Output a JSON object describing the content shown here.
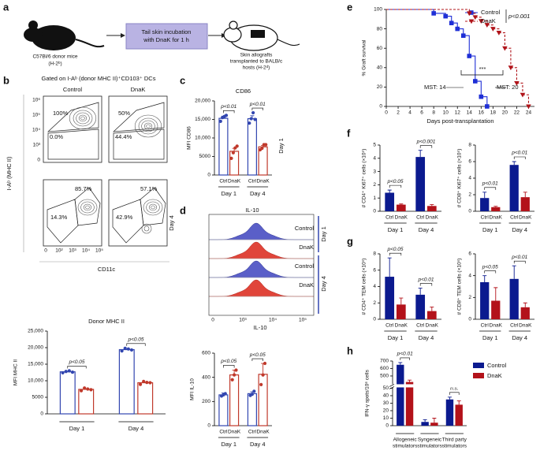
{
  "panel_letters": [
    "a",
    "b",
    "c",
    "d",
    "e",
    "f",
    "g",
    "h"
  ],
  "diagram": {
    "donor": [
      "C57Bl/6 donor mice",
      "(H-2ᵇ)"
    ],
    "step": [
      "Tail skin incubation",
      "with DnaK for 1 h"
    ],
    "host": [
      "Skin allografts",
      "transplanted to BALB/c",
      "hosts (H-2ᵈ)"
    ]
  },
  "flow": {
    "title": "Gated on I-Aᵇ (donor MHC II)⁺CD103⁺ DCs",
    "columns": [
      "Control",
      "DnaK"
    ],
    "rows": [
      "Day 1",
      "Day 4"
    ],
    "ylabel": "I-Aᵇ (MHC II)",
    "xlabel": "CD11c",
    "yticks": [
      "10⁶",
      "10⁵",
      "10⁴",
      "10³",
      "0"
    ],
    "xticks": [
      "0",
      "10²",
      "10³",
      "10⁴",
      "10⁵"
    ],
    "plots": [
      {
        "upper": "100%",
        "lower": "0.0%"
      },
      {
        "upper": "50%",
        "lower": "44.4%"
      },
      {
        "upper": "85.7%",
        "lower": "14.3%"
      },
      {
        "upper": "57.1%",
        "lower": "42.9%"
      }
    ]
  },
  "histogram": {
    "title": "IL-10",
    "rows": [
      "Control",
      "DnaK",
      "Control",
      "DnaK"
    ],
    "days": [
      "Day 1",
      "Day 4"
    ],
    "xticks": [
      "0",
      "10³",
      "10⁴",
      "10⁵"
    ],
    "xlabel": "IL-10"
  },
  "chart_data": [
    {
      "type": "bar",
      "style": "open",
      "title": "Donor MHC II",
      "ylabel": "MFI MHC II",
      "categories": [
        "Day 1",
        "Day 4"
      ],
      "series": [
        {
          "name": "Ctrl",
          "color": "#3246b0",
          "values": [
            12700,
            19400
          ],
          "points": [
            [
              12400,
              12800,
              13000,
              12600
            ],
            [
              19000,
              19800,
              19600,
              19300
            ]
          ]
        },
        {
          "name": "DnaK",
          "color": "#c0392b",
          "values": [
            7400,
            9400
          ],
          "points": [
            [
              7000,
              7800,
              7500,
              7300
            ],
            [
              8900,
              9800,
              9500,
              9400
            ]
          ]
        }
      ],
      "ylim": [
        0,
        25000
      ],
      "yticks": [
        0,
        5000,
        {
          "value": 10000,
          "label": "10,000"
        },
        {
          "value": 15000,
          "label": "15,000"
        },
        {
          "value": 20000,
          "label": "20,000"
        },
        {
          "value": 25000,
          "label": "25,000"
        }
      ],
      "annotations": [
        "p<0.05",
        "p<0.05"
      ]
    },
    {
      "type": "bar",
      "style": "open",
      "title": "CD86",
      "ylabel": "MFI CD86",
      "categories": [
        "Day 1",
        "Day 4"
      ],
      "series": [
        {
          "name": "Ctrl",
          "color": "#3246b0",
          "values": [
            15300,
            15200
          ],
          "errors": [
            600,
            800
          ],
          "points": [
            [
              14500,
              15500,
              15800,
              16100
            ],
            [
              14000,
              15200,
              16800,
              15000
            ]
          ]
        },
        {
          "name": "DnaK",
          "color": "#c0392b",
          "values": [
            6400,
            7600
          ],
          "errors": [
            800,
            400
          ],
          "points": [
            [
              4500,
              6000,
              7300,
              7800
            ],
            [
              6800,
              7200,
              8200,
              8200
            ]
          ]
        }
      ],
      "ylim": [
        0,
        20000
      ],
      "yticks": [
        0,
        5000,
        {
          "value": 10000,
          "label": "10,000"
        },
        {
          "value": 15000,
          "label": "15,000"
        },
        {
          "value": 20000,
          "label": "20,000"
        }
      ],
      "annotations": [
        "p<0.01",
        "p<0.01"
      ]
    },
    {
      "type": "bar",
      "style": "open",
      "ylabel": "MFI IL-10",
      "categories": [
        "Day 1",
        "Day 4"
      ],
      "series": [
        {
          "name": "Ctrl",
          "color": "#3246b0",
          "values": [
            255,
            265
          ],
          "errors": [
            15,
            15
          ],
          "points": [
            [
              245,
              255,
              265
            ],
            [
              250,
              260,
              285
            ]
          ]
        },
        {
          "name": "DnaK",
          "color": "#c0392b",
          "values": [
            420,
            425
          ],
          "errors": [
            40,
            90
          ],
          "points": [
            [
              380,
              420,
              460
            ],
            [
              340,
              420,
              515
            ]
          ]
        }
      ],
      "ylim": [
        0,
        600
      ],
      "yticks": [
        0,
        200,
        400,
        600
      ],
      "annotations": [
        "p<0.05",
        "p<0.05"
      ]
    },
    {
      "type": "survival",
      "xlabel": "Days post-transplantation",
      "ylabel": "% Graft survival",
      "xlim": [
        0,
        25
      ],
      "xticks": [
        0,
        2,
        4,
        6,
        8,
        10,
        12,
        14,
        16,
        18,
        20,
        22,
        24
      ],
      "ylim": [
        0,
        100
      ],
      "yticks": [
        0,
        20,
        40,
        60,
        80,
        100
      ],
      "series": [
        {
          "name": "Control",
          "color": "#1f2fd6",
          "marker": "square",
          "linestyle": "solid",
          "x": [
            8,
            10,
            11,
            12,
            13,
            14,
            15,
            16,
            17
          ],
          "values": [
            96,
            93,
            86,
            80,
            73,
            52,
            26,
            10,
            0
          ]
        },
        {
          "name": "DnaK",
          "color": "#b0141a",
          "marker": "triangle",
          "linestyle": "dashed",
          "x": [
            14,
            15,
            16,
            17,
            18,
            19,
            20,
            21,
            22,
            23,
            24
          ],
          "values": [
            96,
            92,
            88,
            84,
            80,
            76,
            60,
            40,
            24,
            12,
            0
          ]
        }
      ],
      "legend": "upper right",
      "p_value": "p<0.001",
      "significance": "***",
      "mst": [
        "MST: 14",
        "MST: 20"
      ]
    },
    {
      "type": "bar",
      "style": "filled",
      "ylabel": "# CD4⁺ Ki67⁺ cells (×10⁵)",
      "categories": [
        "Day 1",
        "Day 4"
      ],
      "series": [
        {
          "name": "Ctrl",
          "color": "#0b1a8f",
          "values": [
            1.4,
            4.1
          ],
          "errors": [
            0.2,
            0.5
          ]
        },
        {
          "name": "DnaK",
          "color": "#b3121a",
          "values": [
            0.5,
            0.4
          ],
          "errors": [
            0.05,
            0.1
          ]
        }
      ],
      "ylim": [
        0,
        5
      ],
      "yticks": [
        0,
        1,
        2,
        3,
        4,
        5
      ],
      "annotations": [
        "p<0.05",
        "p<0.001"
      ]
    },
    {
      "type": "bar",
      "style": "filled",
      "ylabel": "# CD8⁺ Ki67⁺ cells (×10⁵)",
      "categories": [
        "Day 1",
        "Day 4"
      ],
      "series": [
        {
          "name": "Ctrl",
          "color": "#0b1a8f",
          "values": [
            1.6,
            5.6
          ],
          "errors": [
            0.7,
            0.4
          ]
        },
        {
          "name": "DnaK",
          "color": "#b3121a",
          "values": [
            0.5,
            1.7
          ],
          "errors": [
            0.1,
            0.6
          ]
        }
      ],
      "ylim": [
        0,
        8
      ],
      "yticks": [
        0,
        2,
        4,
        6,
        8
      ],
      "annotations": [
        "p<0.01",
        "p<0.01"
      ]
    },
    {
      "type": "bar",
      "style": "filled",
      "ylabel": "# CD4⁺ TEM cells (×10⁵)",
      "categories": [
        "Day 1",
        "Day 4"
      ],
      "series": [
        {
          "name": "Ctrl",
          "color": "#0b1a8f",
          "values": [
            5.2,
            3.0
          ],
          "errors": [
            2.3,
            0.8
          ]
        },
        {
          "name": "DnaK",
          "color": "#b3121a",
          "values": [
            1.8,
            1.0
          ],
          "errors": [
            0.8,
            0.5
          ]
        }
      ],
      "ylim": [
        0,
        8
      ],
      "yticks": [
        0,
        2,
        4,
        6,
        8
      ],
      "annotations": [
        "p<0.05",
        "p<0.01"
      ]
    },
    {
      "type": "bar",
      "style": "filled",
      "ylabel": "# CD8⁺ TEM cells (×10⁵)",
      "categories": [
        "Day 1",
        "Day 4"
      ],
      "series": [
        {
          "name": "Ctrl",
          "color": "#0b1a8f",
          "values": [
            3.4,
            3.7
          ],
          "errors": [
            0.6,
            1.2
          ]
        },
        {
          "name": "DnaK",
          "color": "#b3121a",
          "values": [
            1.7,
            1.1
          ],
          "errors": [
            1.2,
            0.4
          ]
        }
      ],
      "ylim": [
        0,
        6
      ],
      "yticks": [
        0,
        2,
        4,
        6
      ],
      "annotations": [
        "p<0.05",
        "p<0.01"
      ]
    },
    {
      "type": "bar",
      "style": "filled",
      "ylabel": "IFN-γ spots/10⁶ cells",
      "categories": [
        [
          "Allogeneic",
          "stimulators"
        ],
        [
          "Syngeneic",
          "stimulators"
        ],
        [
          "Third party",
          "stimulators"
        ]
      ],
      "series": [
        {
          "name": "Control",
          "color": "#0b1a8f",
          "values": [
            650,
            5,
            35
          ],
          "errors": [
            30,
            3,
            3
          ]
        },
        {
          "name": "DnaK",
          "color": "#b3121a",
          "values": [
            420,
            4,
            28
          ],
          "errors": [
            25,
            6,
            5
          ]
        }
      ],
      "ylim": [
        0,
        700
      ],
      "ybreak": [
        50,
        400
      ],
      "yticks": [
        0,
        10,
        20,
        30,
        40,
        50,
        500,
        600,
        700
      ],
      "annotations": [
        "p<0.01",
        null,
        "n.s."
      ],
      "legend": "upper right"
    }
  ]
}
